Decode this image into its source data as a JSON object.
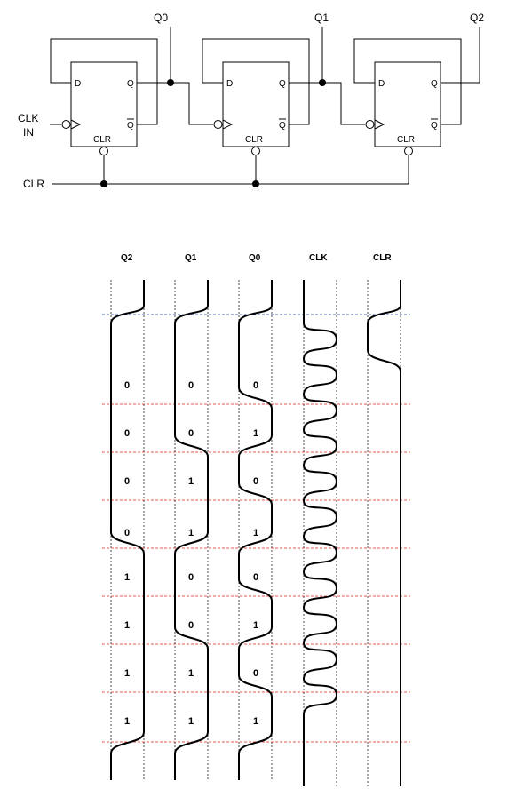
{
  "circuit": {
    "outputs": [
      "Q0",
      "Q1",
      "Q2"
    ],
    "clock_input": [
      "CLK",
      "IN"
    ],
    "clear_input": "CLR",
    "flipflop_pins": {
      "d": "D",
      "q": "Q",
      "qbar": "Q",
      "clr": "CLR"
    }
  },
  "timing": {
    "headers": [
      "Q2",
      "Q1",
      "Q0",
      "CLK",
      "CLR"
    ],
    "states": [
      [
        "0",
        "0",
        "0"
      ],
      [
        "0",
        "0",
        "1"
      ],
      [
        "0",
        "1",
        "0"
      ],
      [
        "0",
        "1",
        "1"
      ],
      [
        "1",
        "0",
        "0"
      ],
      [
        "1",
        "0",
        "1"
      ],
      [
        "1",
        "1",
        "0"
      ],
      [
        "1",
        "1",
        "1"
      ]
    ]
  },
  "colors": {
    "row_divider": "#e0201c",
    "start_divider": "#1f3f9f",
    "ink": "#000000"
  }
}
